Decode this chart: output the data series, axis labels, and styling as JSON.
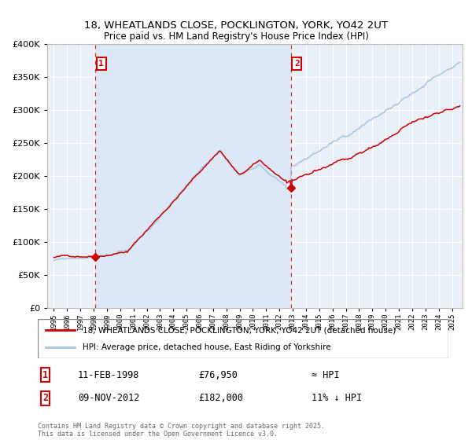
{
  "title_line1": "18, WHEATLANDS CLOSE, POCKLINGTON, YORK, YO42 2UT",
  "title_line2": "Price paid vs. HM Land Registry's House Price Index (HPI)",
  "legend_line1": "18, WHEATLANDS CLOSE, POCKLINGTON, YORK, YO42 2UT (detached house)",
  "legend_line2": "HPI: Average price, detached house, East Riding of Yorkshire",
  "annotation1_label": "1",
  "annotation1_date": "11-FEB-1998",
  "annotation1_price": "£76,950",
  "annotation1_hpi": "≈ HPI",
  "annotation2_label": "2",
  "annotation2_date": "09-NOV-2012",
  "annotation2_price": "£182,000",
  "annotation2_hpi": "11% ↓ HPI",
  "footer": "Contains HM Land Registry data © Crown copyright and database right 2025.\nThis data is licensed under the Open Government Licence v3.0.",
  "shaded_start": 1998.12,
  "shaded_end": 2012.86,
  "vline1_x": 1998.12,
  "vline2_x": 2012.86,
  "marker1_x": 1998.12,
  "marker1_y": 76950,
  "marker2_x": 2012.86,
  "marker2_y": 182000,
  "hpi_color": "#a8c4e0",
  "price_color": "#cc0000",
  "background_color": "#ffffff",
  "plot_bg_color": "#eaf0f8",
  "shaded_color": "#dce8f5",
  "ylim": [
    0,
    400000
  ],
  "xlim_start": 1994.5,
  "xlim_end": 2025.8,
  "grid_color": "#ffffff",
  "ytick_labels": [
    "£0",
    "£50K",
    "£100K",
    "£150K",
    "£200K",
    "£250K",
    "£300K",
    "£350K",
    "£400K"
  ],
  "ytick_values": [
    0,
    50000,
    100000,
    150000,
    200000,
    250000,
    300000,
    350000,
    400000
  ]
}
